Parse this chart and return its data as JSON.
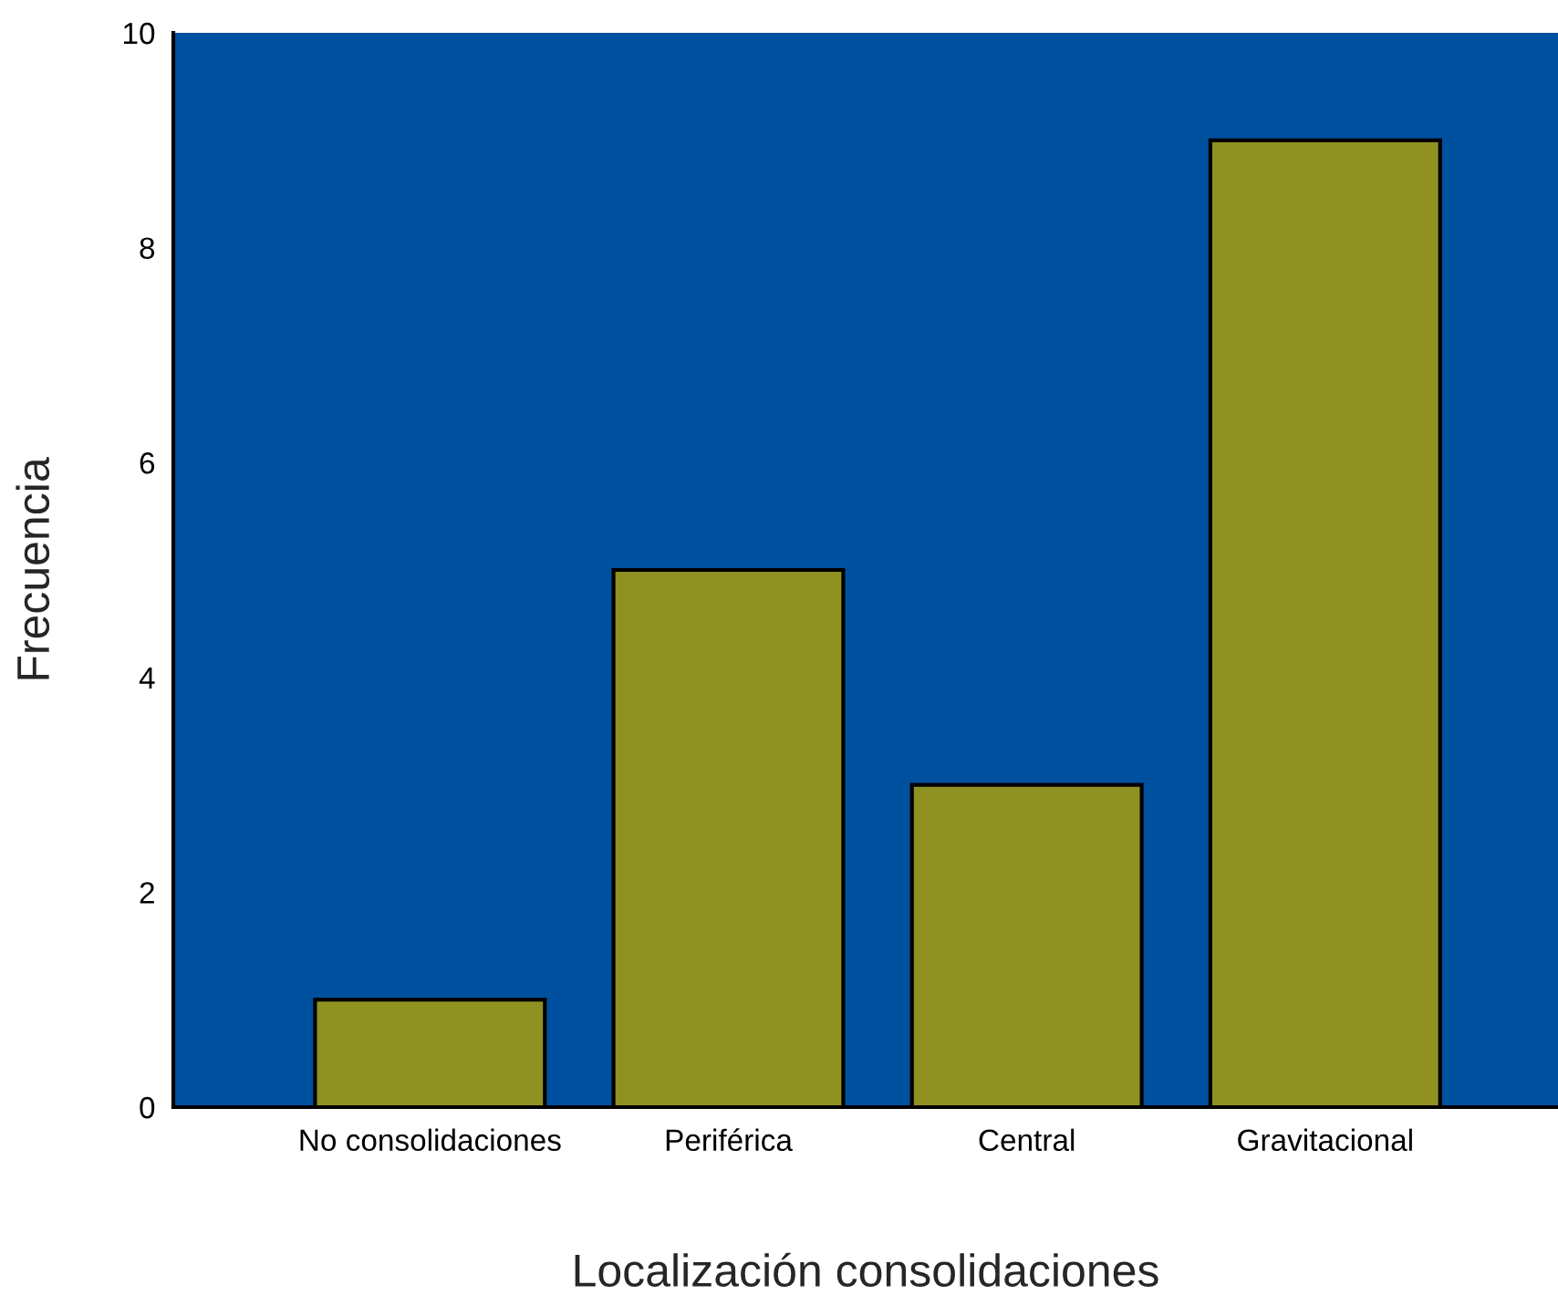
{
  "chart_data": {
    "type": "bar",
    "xlabel": "Localización consolidaciones",
    "ylabel": "Frecuencia",
    "categories": [
      "No consolidaciones",
      "Periférica",
      "Central",
      "Gravitacional"
    ],
    "values": [
      1,
      5,
      3,
      9
    ],
    "color": "#8f9121",
    "ylim": [
      0,
      10
    ],
    "yticks": [
      0,
      2,
      4,
      6,
      8,
      10
    ],
    "grid": false,
    "legend": false
  }
}
